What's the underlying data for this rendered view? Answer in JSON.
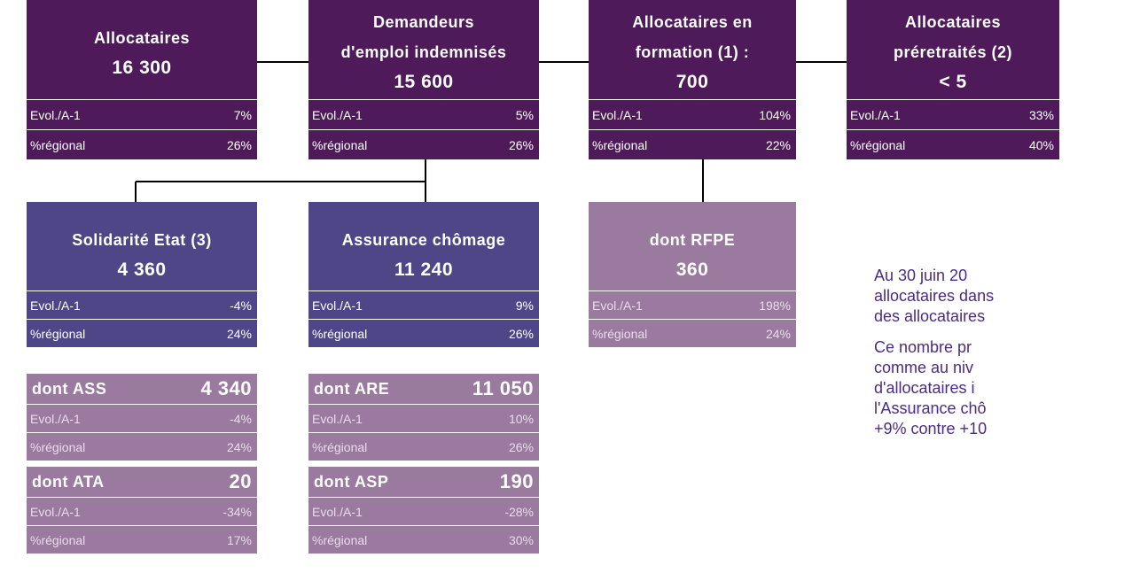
{
  "nodes": [
    {
      "title": [
        "Allocataires"
      ],
      "value": "16 300",
      "evol_label": "Evol./A-1",
      "evol": "7%",
      "regional_label": "%régional",
      "regional": "26%"
    },
    {
      "title": [
        "Demandeurs",
        "d'emploi indemnisés"
      ],
      "value": "15 600",
      "evol_label": "Evol./A-1",
      "evol": "5%",
      "regional_label": "%régional",
      "regional": "26%"
    },
    {
      "title": [
        "Allocataires en",
        "formation (1) :"
      ],
      "value": "700",
      "evol_label": "Evol./A-1",
      "evol": "104%",
      "regional_label": "%régional",
      "regional": "22%"
    },
    {
      "title": [
        "Allocataires",
        "préretraités (2)"
      ],
      "value": "< 5",
      "evol_label": "Evol./A-1",
      "evol": "33%",
      "regional_label": "%régional",
      "regional": "40%"
    },
    {
      "title": [
        "Solidarité Etat (3)"
      ],
      "value": "4 360",
      "evol_label": "Evol./A-1",
      "evol": "-4%",
      "regional_label": "%régional",
      "regional": "24%"
    },
    {
      "title": [
        "Assurance chômage"
      ],
      "value": "11 240",
      "evol_label": "Evol./A-1",
      "evol": "9%",
      "regional_label": "%régional",
      "regional": "26%"
    },
    {
      "title": [
        "dont RFPE"
      ],
      "value": "360",
      "evol_label": "Evol./A-1",
      "evol": "198%",
      "regional_label": "%régional",
      "regional": "24%"
    },
    {
      "title": [
        "dont ASS"
      ],
      "value": "4 340",
      "evol_label": "Evol./A-1",
      "evol": "-4%",
      "regional_label": "%régional",
      "regional": "24%"
    },
    {
      "title": [
        "dont ARE"
      ],
      "value": "11 050",
      "evol_label": "Evol./A-1",
      "evol": "10%",
      "regional_label": "%régional",
      "regional": "26%"
    },
    {
      "title": [
        "dont ATA"
      ],
      "value": "20",
      "evol_label": "Evol./A-1",
      "evol": "-34%",
      "regional_label": "%régional",
      "regional": "17%"
    },
    {
      "title": [
        "dont ASP"
      ],
      "value": "190",
      "evol_label": "Evol./A-1",
      "evol": "-28%",
      "regional_label": "%régional",
      "regional": "30%"
    }
  ],
  "commentary": [
    [
      "Au 30 juin 20",
      "allocataires dans",
      "des allocataires"
    ],
    [
      "Ce nombre pr",
      "comme au niv",
      "d'allocataires i",
      "l'Assurance chô",
      "+9% contre +10"
    ]
  ]
}
